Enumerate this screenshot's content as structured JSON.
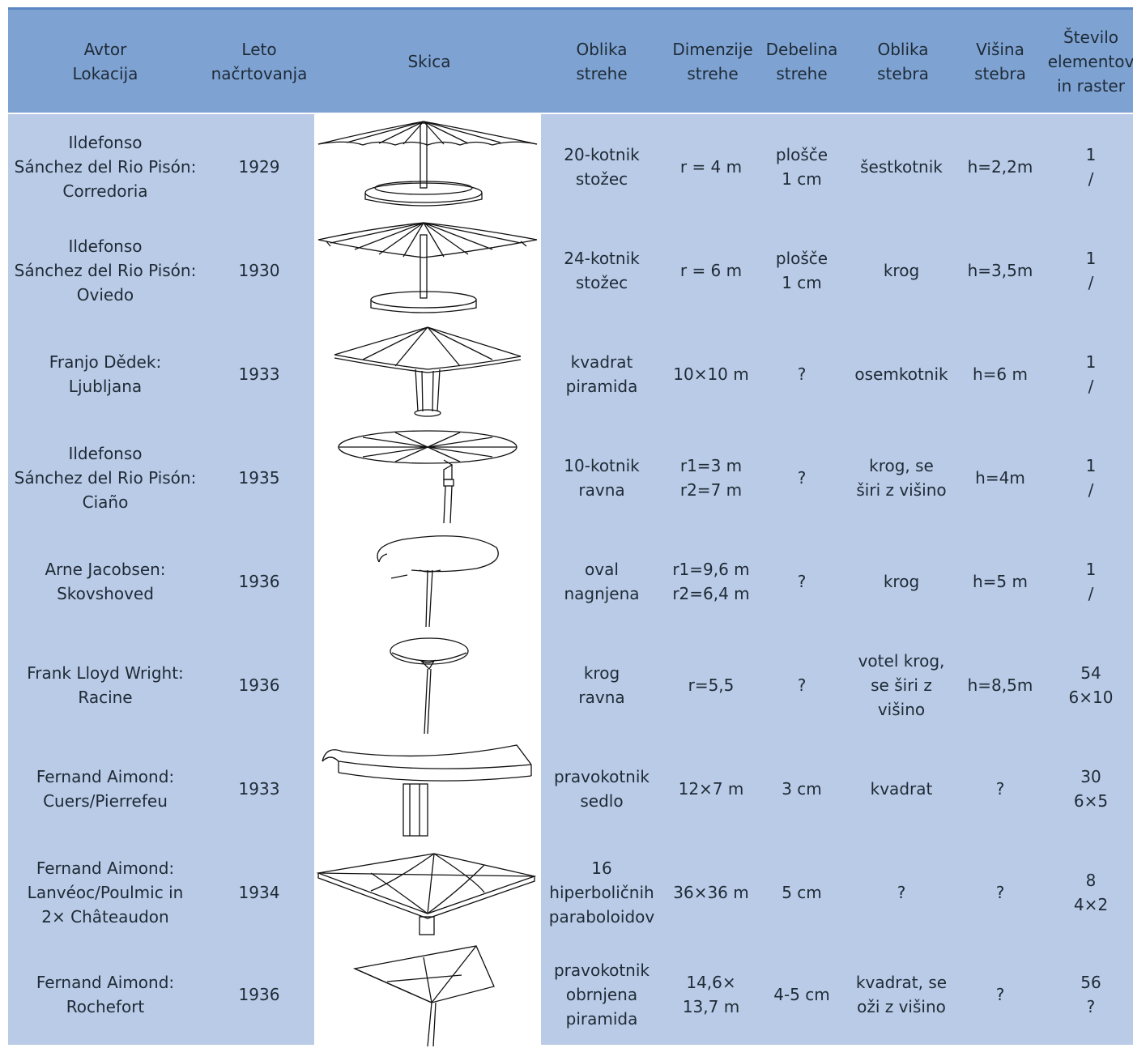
{
  "header": {
    "author_location": "Avtor\nLokacija",
    "year": "Leto\nnačrtovanja",
    "sketch": "Skica",
    "roof_shape": "Oblika\nstrehe",
    "roof_dimensions": "Dimenzije\nstrehe",
    "roof_thickness": "Debelina\nstrehe",
    "column_shape": "Oblika\nstebra",
    "column_height": "Višina\nstebra",
    "elements_grid": "Število\nelementov\nin raster"
  },
  "rows": [
    {
      "author": "Ildefonso\nSánchez del Rio Pisón:\nCorredoria",
      "year": "1929",
      "sketch_icon": "umbrella-cone-20gon-icon",
      "roof_shape": "20-kotnik\nstožec",
      "dimensions": "r = 4 m",
      "thickness": "plošče\n1 cm",
      "column": "šestkotnik",
      "height": "h=2,2m",
      "elements": "1\n/"
    },
    {
      "author": "Ildefonso\nSánchez del Rio Pisón:\nOviedo",
      "year": "1930",
      "sketch_icon": "umbrella-cone-24gon-icon",
      "roof_shape": "24-kotnik\nstožec",
      "dimensions": "r = 6 m",
      "thickness": "plošče\n1 cm",
      "column": "krog",
      "height": "h=3,5m",
      "elements": "1\n/"
    },
    {
      "author": "Franjo Dědek:\nLjubljana",
      "year": "1933",
      "sketch_icon": "square-pyramid-roof-icon",
      "roof_shape": "kvadrat\npiramida",
      "dimensions": "10×10 m",
      "thickness": "?",
      "column": "osemkotnik",
      "height": "h=6 m",
      "elements": "1\n/"
    },
    {
      "author": "Ildefonso\nSánchez del Rio Pisón:\nCiaño",
      "year": "1935",
      "sketch_icon": "flat-10gon-roof-icon",
      "roof_shape": "10-kotnik\nravna",
      "dimensions": "r1=3 m\nr2=7 m",
      "thickness": "?",
      "column": "krog, se\nširi z višino",
      "height": "h=4m",
      "elements": "1\n/"
    },
    {
      "author": "Arne Jacobsen:\nSkovshoved",
      "year": "1936",
      "sketch_icon": "tilted-oval-roof-icon",
      "roof_shape": "oval\nnagnjena",
      "dimensions": "r1=9,6 m\nr2=6,4 m",
      "thickness": "?",
      "column": "krog",
      "height": "h=5 m",
      "elements": "1\n/"
    },
    {
      "author": "Frank Lloyd Wright:\nRacine",
      "year": "1936",
      "sketch_icon": "dendriform-column-icon",
      "roof_shape": "krog\nravna",
      "dimensions": "r=5,5",
      "thickness": "?",
      "column": "votel krog,\nse širi z\nvišino",
      "height": "h=8,5m",
      "elements": "54\n6×10"
    },
    {
      "author": "Fernand Aimond:\nCuers/Pierrefeu",
      "year": "1933",
      "sketch_icon": "saddle-roof-icon",
      "roof_shape": "pravokotnik\nsedlo",
      "dimensions": "12×7 m",
      "thickness": "3 cm",
      "column": "kvadrat",
      "height": "?",
      "elements": "30\n6×5"
    },
    {
      "author": "Fernand Aimond:\nLanvéoc/Poulmic in\n2× Châteaudon",
      "year": "1934",
      "sketch_icon": "hyperbolic-paraboloid-roof-icon",
      "roof_shape": "16\nhiperboličnih\nparaboloidov",
      "dimensions": "36×36 m",
      "thickness": "5 cm",
      "column": "?",
      "height": "?",
      "elements": "8\n4×2"
    },
    {
      "author": "Fernand Aimond:\nRochefort",
      "year": "1936",
      "sketch_icon": "inverted-pyramid-roof-icon",
      "roof_shape": "pravokotnik\nobrnjena\npiramida",
      "dimensions": "14,6×\n13,7 m",
      "thickness": "4-5 cm",
      "column": "kvadrat, se\noži z višino",
      "height": "?",
      "elements": "56\n?"
    }
  ]
}
